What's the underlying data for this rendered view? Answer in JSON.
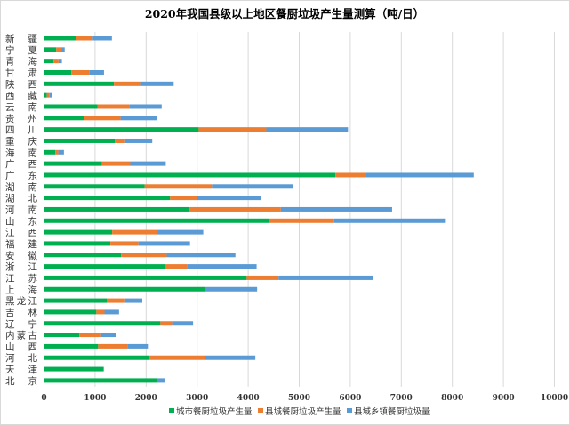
{
  "chart_data": {
    "type": "bar",
    "orientation": "horizontal",
    "stacked": true,
    "title": "2020年我国县级以上地区餐厨垃圾产生量测算（吨/日）",
    "xlabel": "",
    "ylabel": "",
    "xlim": [
      0,
      10000
    ],
    "xticks": [
      "0",
      "1000",
      "2000",
      "3000",
      "4000",
      "5000",
      "6000",
      "7000",
      "8000",
      "9000",
      "10000"
    ],
    "grid": true,
    "legend_position": "bottom",
    "categories": [
      "新疆",
      "宁夏",
      "青海",
      "甘肃",
      "陕西",
      "西藏",
      "云南",
      "贵州",
      "四川",
      "重庆",
      "海南",
      "广西",
      "广东",
      "湖南",
      "湖北",
      "河南",
      "山东",
      "江西",
      "福建",
      "安徽",
      "浙江",
      "江苏",
      "上海",
      "黑龙江",
      "吉林",
      "辽宁",
      "内蒙古",
      "山西",
      "河北",
      "天津",
      "北京"
    ],
    "series": [
      {
        "name": "城市餐厨垃圾产生量",
        "color": "#00b050",
        "values": [
          620,
          240,
          185,
          535,
          1370,
          55,
          1045,
          780,
          3030,
          1390,
          220,
          1135,
          5710,
          1970,
          2470,
          2850,
          4415,
          1335,
          1300,
          1510,
          2365,
          3970,
          3160,
          1235,
          1025,
          2280,
          690,
          1060,
          2070,
          1170,
          2205
        ]
      },
      {
        "name": "县城餐厨垃圾产生量",
        "color": "#ed7d31",
        "values": [
          335,
          100,
          100,
          350,
          530,
          55,
          635,
          720,
          1325,
          200,
          60,
          555,
          605,
          1320,
          535,
          1790,
          1270,
          895,
          550,
          895,
          435,
          625,
          0,
          355,
          160,
          230,
          430,
          585,
          1080,
          0,
          0
        ]
      },
      {
        "name": "县域乡镇餐厨垃圾量",
        "color": "#5b9bd5",
        "values": [
          375,
          65,
          65,
          290,
          640,
          40,
          625,
          705,
          1600,
          530,
          110,
          695,
          2105,
          1595,
          1245,
          2180,
          2170,
          890,
          1010,
          1345,
          1365,
          1860,
          1015,
          335,
          285,
          410,
          285,
          390,
          990,
          0,
          155
        ]
      }
    ]
  }
}
